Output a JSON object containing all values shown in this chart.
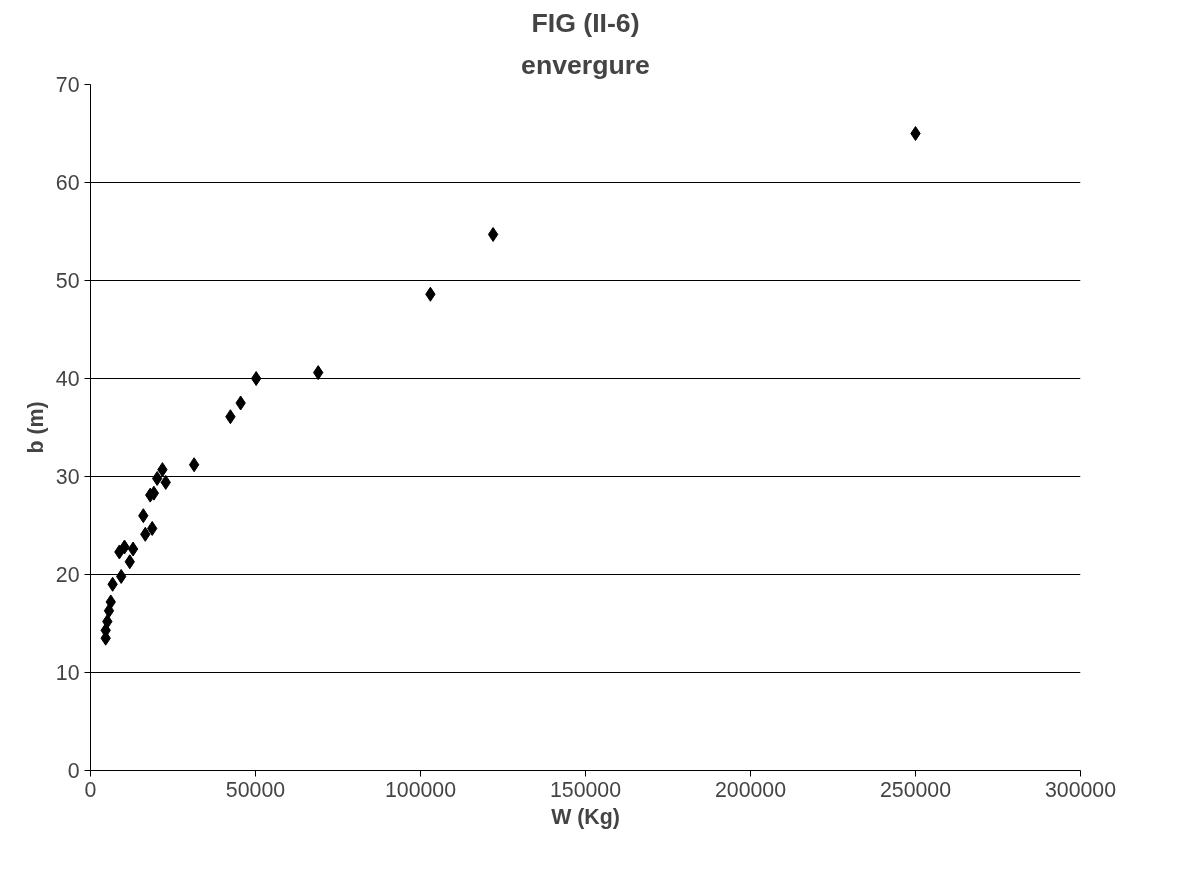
{
  "chart_data": {
    "type": "scatter",
    "title": "FIG (II-6)",
    "subtitle": "envergure",
    "xlabel": "W (Kg)",
    "ylabel": "b (m)",
    "xlim": [
      0,
      300000
    ],
    "xticks": [
      0,
      50000,
      100000,
      150000,
      200000,
      250000,
      300000
    ],
    "ylim": [
      0,
      70
    ],
    "yticks": [
      0,
      10,
      20,
      30,
      40,
      50,
      60,
      70
    ],
    "grid": "y",
    "marker": "diamond",
    "series": [
      {
        "color": "#000000",
        "x": [
          250000,
          122000,
          103000,
          69000,
          50200,
          45500,
          42400,
          31400,
          21800,
          20200,
          22800,
          19200,
          18100,
          16000,
          18700,
          16600,
          10300,
          12900,
          11900,
          8750,
          9300,
          6700,
          6150,
          5600,
          5100,
          4600,
          4600
        ],
        "values": [
          65,
          54.7,
          48.6,
          40.6,
          40.0,
          37.5,
          36.1,
          31.2,
          30.7,
          29.8,
          29.4,
          28.3,
          28.1,
          26.0,
          24.7,
          24.1,
          22.8,
          22.6,
          21.3,
          22.3,
          19.8,
          19.0,
          17.2,
          16.3,
          15.2,
          14.3,
          13.5
        ]
      }
    ]
  }
}
